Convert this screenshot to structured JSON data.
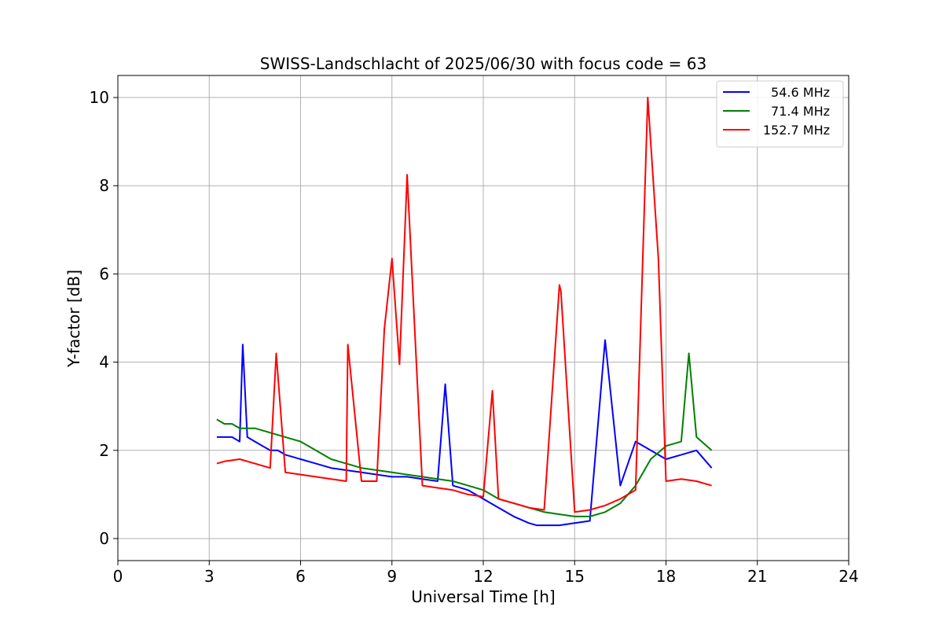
{
  "chart_data": {
    "type": "line",
    "title": "SWISS-Landschlacht of 2025/06/30 with focus code = 63",
    "xlabel": "Universal Time [h]",
    "ylabel": "Y-factor [dB]",
    "xlim": [
      0,
      24
    ],
    "ylim": [
      -0.5,
      10.5
    ],
    "xticks": [
      0,
      3,
      6,
      9,
      12,
      15,
      18,
      21,
      24
    ],
    "yticks": [
      0,
      2,
      4,
      6,
      8,
      10
    ],
    "grid": true,
    "legend_position": "top-right",
    "series": [
      {
        "name": "54.6 MHz",
        "color": "#0000ff",
        "x": [
          3.25,
          3.5,
          3.75,
          4.0,
          4.1,
          4.25,
          4.5,
          4.75,
          5.0,
          5.25,
          5.5,
          5.75,
          6.0,
          6.5,
          7.0,
          7.5,
          8.0,
          8.5,
          9.0,
          9.5,
          10.0,
          10.5,
          10.75,
          11.0,
          11.5,
          12.0,
          12.5,
          13.0,
          13.5,
          13.75,
          14.0,
          14.5,
          15.0,
          15.5,
          16.0,
          16.5,
          17.0,
          17.5,
          18.0,
          18.5,
          19.0,
          19.5
        ],
        "values": [
          2.3,
          2.3,
          2.3,
          2.2,
          4.4,
          2.3,
          2.2,
          2.1,
          2.0,
          2.0,
          1.9,
          1.85,
          1.8,
          1.7,
          1.6,
          1.55,
          1.5,
          1.45,
          1.4,
          1.4,
          1.35,
          1.3,
          3.5,
          1.2,
          1.1,
          0.9,
          0.7,
          0.5,
          0.35,
          0.3,
          0.3,
          0.3,
          0.35,
          0.4,
          4.5,
          1.2,
          2.2,
          2.0,
          1.8,
          1.9,
          2.0,
          1.6
        ]
      },
      {
        "name": "71.4 MHz",
        "color": "#008000",
        "x": [
          3.25,
          3.5,
          3.75,
          4.0,
          4.5,
          5.0,
          5.5,
          6.0,
          6.5,
          7.0,
          7.5,
          8.0,
          8.5,
          9.0,
          9.5,
          10.0,
          10.5,
          11.0,
          11.5,
          12.0,
          12.5,
          13.0,
          13.5,
          14.0,
          14.5,
          15.0,
          15.5,
          16.0,
          16.5,
          17.0,
          17.5,
          18.0,
          18.5,
          18.75,
          19.0,
          19.5
        ],
        "values": [
          2.7,
          2.6,
          2.6,
          2.5,
          2.5,
          2.4,
          2.3,
          2.2,
          2.0,
          1.8,
          1.7,
          1.6,
          1.55,
          1.5,
          1.45,
          1.4,
          1.35,
          1.3,
          1.2,
          1.1,
          0.9,
          0.8,
          0.7,
          0.6,
          0.55,
          0.5,
          0.5,
          0.6,
          0.8,
          1.2,
          1.8,
          2.1,
          2.2,
          4.2,
          2.3,
          2.0
        ]
      },
      {
        "name": "152.7 MHz",
        "color": "#ff0000",
        "x": [
          3.25,
          3.5,
          4.0,
          4.5,
          5.0,
          5.2,
          5.5,
          6.0,
          6.5,
          7.0,
          7.5,
          7.55,
          8.0,
          8.5,
          8.75,
          9.0,
          9.25,
          9.5,
          10.0,
          10.5,
          11.0,
          11.5,
          12.0,
          12.3,
          12.5,
          13.0,
          13.5,
          14.0,
          14.5,
          14.55,
          15.0,
          15.5,
          16.0,
          16.5,
          17.0,
          17.4,
          17.75,
          18.0,
          18.5,
          19.0,
          19.5
        ],
        "values": [
          1.7,
          1.75,
          1.8,
          1.7,
          1.6,
          4.2,
          1.5,
          1.45,
          1.4,
          1.35,
          1.3,
          4.4,
          1.3,
          1.3,
          4.75,
          6.35,
          3.95,
          8.25,
          1.2,
          1.15,
          1.1,
          1.0,
          0.95,
          3.35,
          0.9,
          0.8,
          0.7,
          0.65,
          5.75,
          5.6,
          0.6,
          0.65,
          0.75,
          0.9,
          1.1,
          10.0,
          6.35,
          1.3,
          1.35,
          1.3,
          1.2
        ]
      }
    ]
  }
}
